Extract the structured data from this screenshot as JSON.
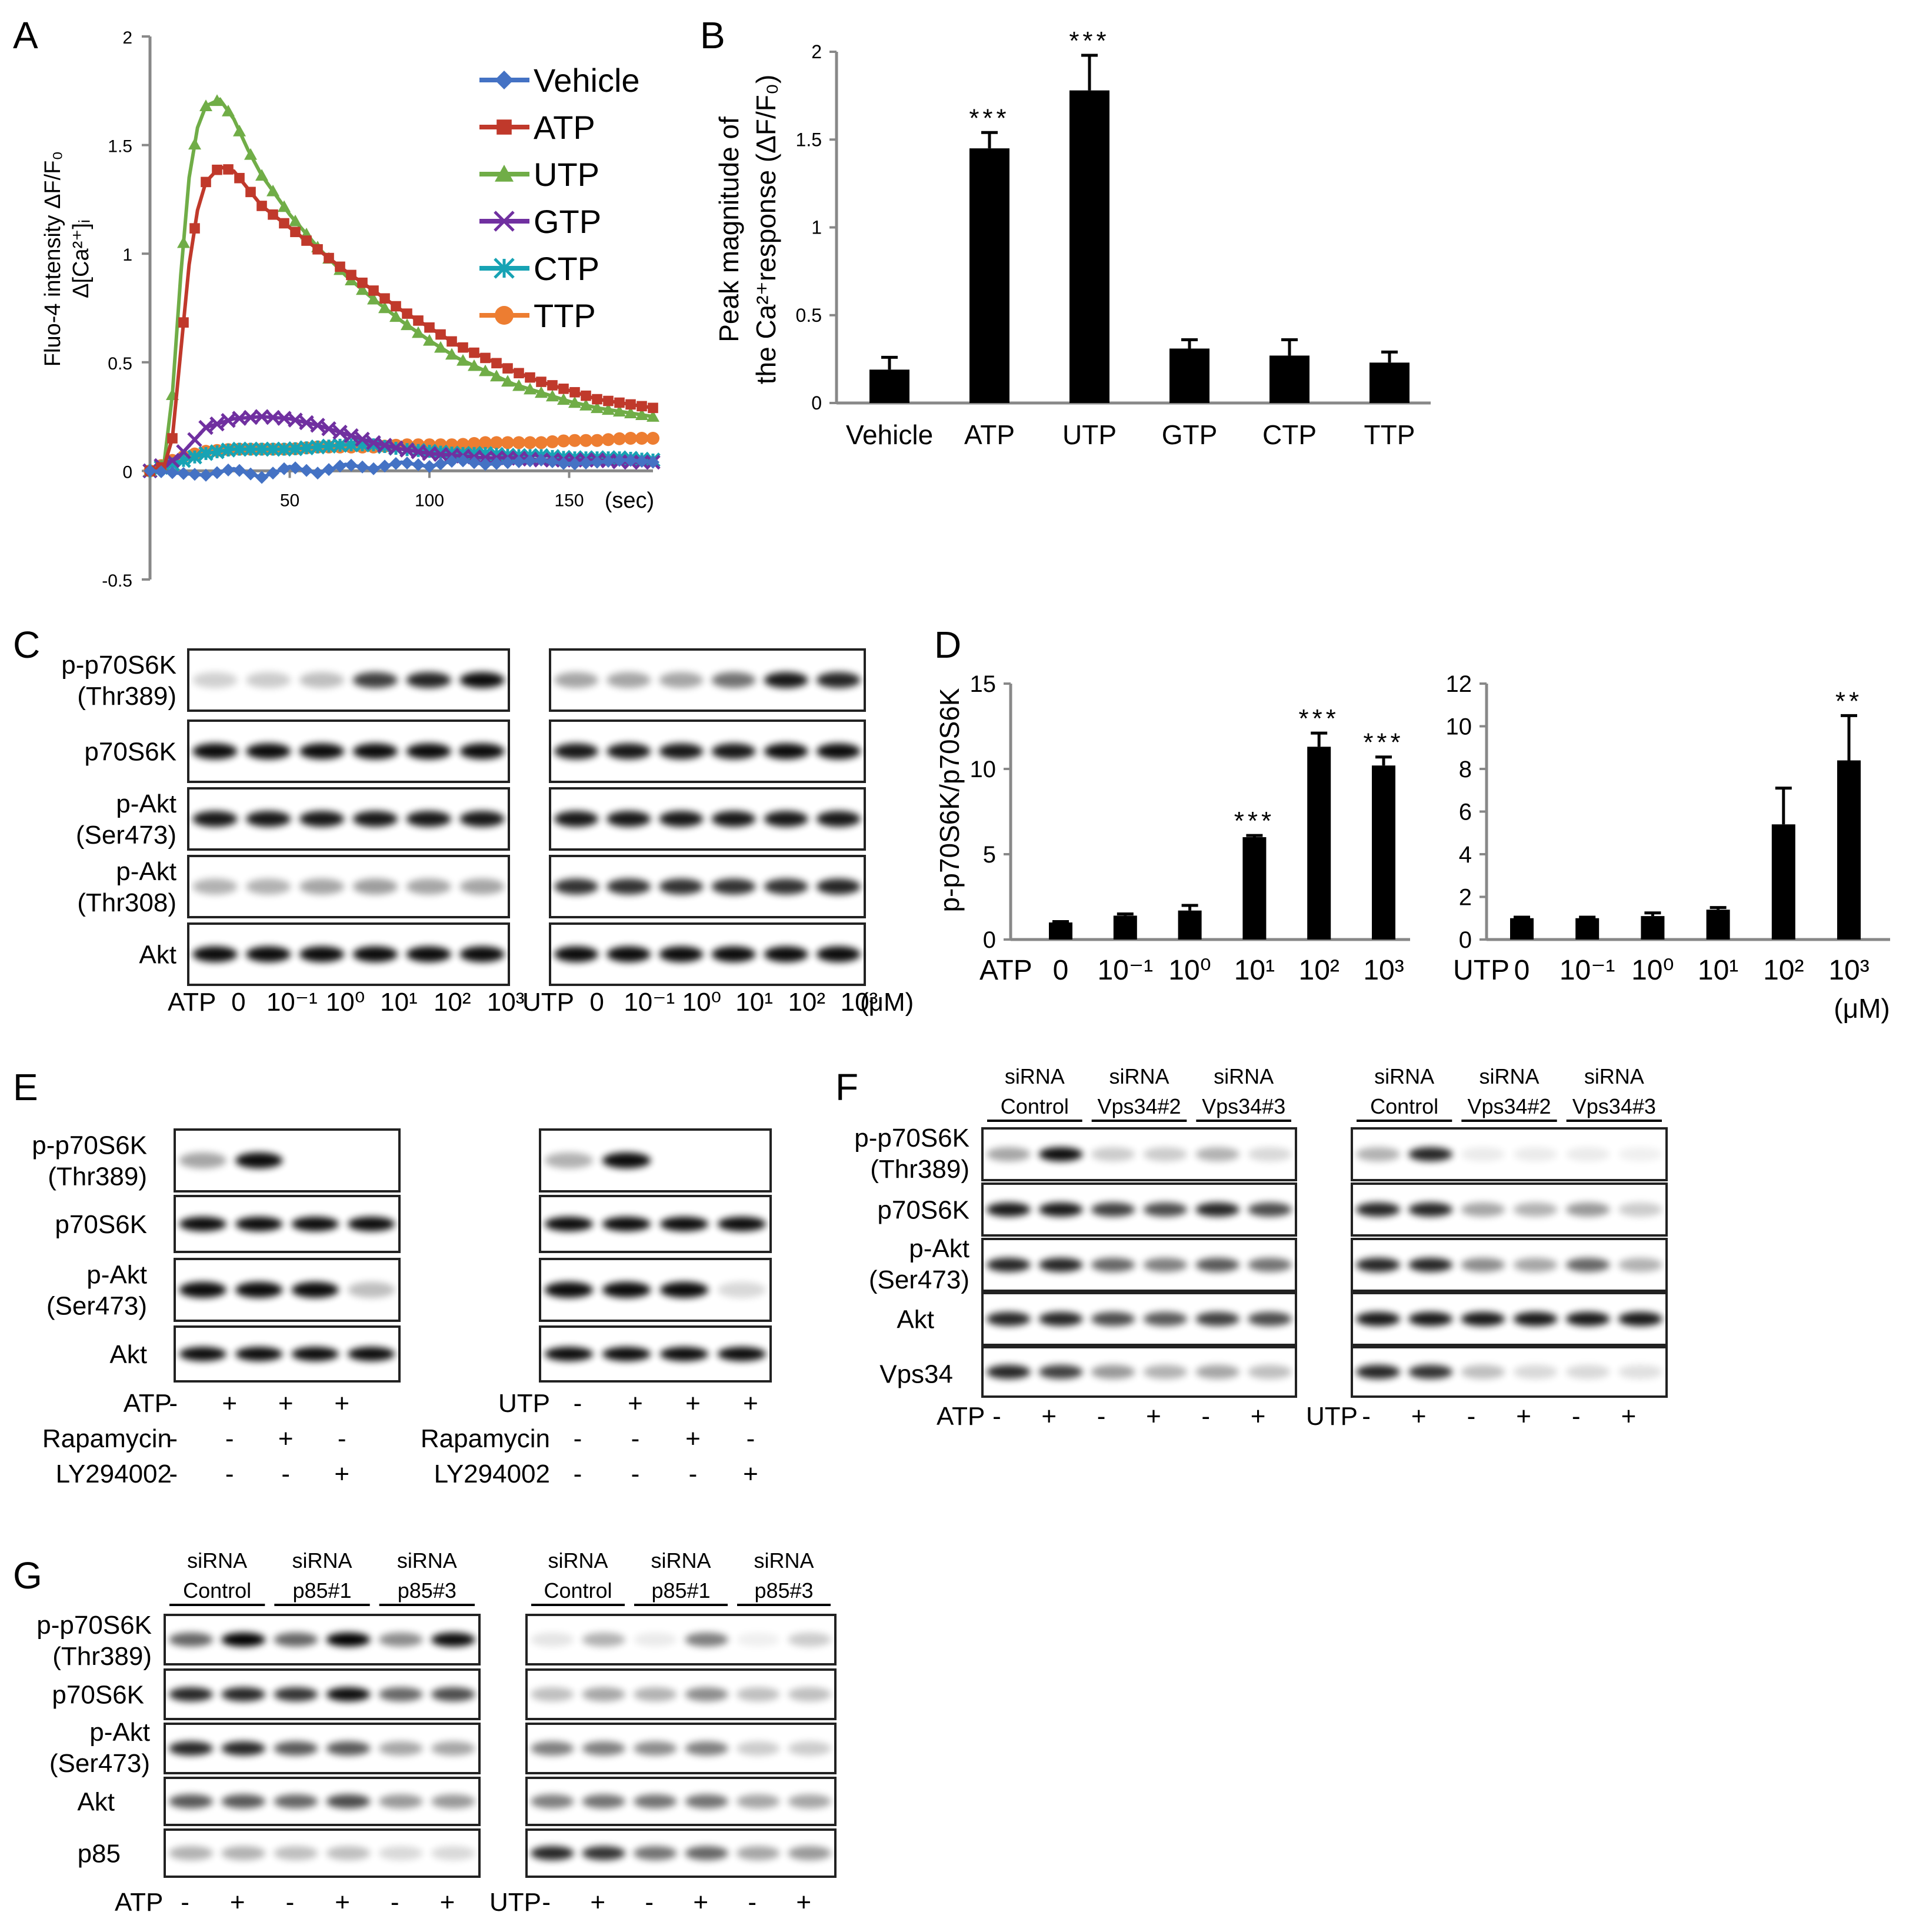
{
  "panels": {
    "A": {
      "letter": "A",
      "ylabel_line1": "Fluo-4 intensity ΔF/F₀",
      "ylabel_line2": "Δ[Ca²⁺]ᵢ",
      "xunit": "(sec)"
    },
    "B": {
      "letter": "B",
      "ylabel_line1": "Peak magnitude of",
      "ylabel_line2": "the Ca²⁺response (ΔF/F₀)"
    },
    "C": {
      "letter": "C",
      "rows": [
        "p-p70S6K (Thr389)",
        "p70S6K",
        "p-Akt (Ser473)",
        "p-Akt (Thr308)",
        "Akt"
      ],
      "row_lines": [
        [
          "p-p70S6K",
          "(Thr389)"
        ],
        [
          "p70S6K"
        ],
        [
          "p-Akt",
          "(Ser473)"
        ],
        [
          "p-Akt",
          "(Thr308)"
        ],
        [
          "Akt"
        ]
      ],
      "left_treat": "ATP",
      "right_treat": "UTP",
      "doses": [
        "0",
        "10⁻¹",
        "10⁰",
        "10¹",
        "10²",
        "10³"
      ],
      "unit": "(μM)"
    },
    "D": {
      "letter": "D",
      "ylabel": "p-p70S6K/p70S6K",
      "unit": "(μM)",
      "atp_label": "ATP",
      "utp_label": "UTP"
    },
    "E": {
      "letter": "E",
      "rows": [
        [
          "p-p70S6K",
          "(Thr389)"
        ],
        [
          "p70S6K"
        ],
        [
          "p-Akt",
          "(Ser473)"
        ],
        [
          "Akt"
        ]
      ],
      "left_treat": "ATP",
      "right_treat": "UTP",
      "atp_signs": [
        "-",
        "+",
        "+",
        "+"
      ],
      "rapamycin_label": "Rapamycin",
      "rapamycin_signs": [
        "-",
        "-",
        "+",
        "-"
      ],
      "ly_label": "LY294002",
      "ly_signs": [
        "-",
        "-",
        "-",
        "+"
      ]
    },
    "F": {
      "letter": "F",
      "groups": [
        [
          "siRNA",
          "Control"
        ],
        [
          "siRNA",
          "Vps34#2"
        ],
        [
          "siRNA",
          "Vps34#3"
        ]
      ],
      "rows": [
        [
          "p-p70S6K",
          "(Thr389)"
        ],
        [
          "p70S6K"
        ],
        [
          "p-Akt",
          "(Ser473)"
        ],
        [
          "Akt"
        ],
        [
          "Vps34"
        ]
      ],
      "left_treat": "ATP",
      "right_treat": "UTP",
      "signs": [
        "-",
        "+",
        "-",
        "+",
        "-",
        "+"
      ]
    },
    "G": {
      "letter": "G",
      "groups": [
        [
          "siRNA",
          "Control"
        ],
        [
          "siRNA",
          "p85#1"
        ],
        [
          "siRNA",
          "p85#3"
        ]
      ],
      "rows": [
        [
          "p-p70S6K",
          "(Thr389)"
        ],
        [
          "p70S6K"
        ],
        [
          "p-Akt",
          "(Ser473)"
        ],
        [
          "Akt"
        ],
        [
          "p85"
        ]
      ],
      "left_treat": "ATP",
      "right_treat": "UTP",
      "signs": [
        "-",
        "+",
        "-",
        "+",
        "-",
        "+"
      ]
    }
  },
  "chart_data": [
    {
      "panel": "A",
      "type": "line",
      "title": "",
      "xlabel": "(sec)",
      "ylabel": "Fluo-4 intensity ΔF/F₀ Δ[Ca²⁺]ᵢ",
      "xlim": [
        0,
        180
      ],
      "ylim": [
        -0.5,
        2
      ],
      "xticks": [
        50,
        100,
        150
      ],
      "yticks": [
        -0.5,
        0,
        0.5,
        1,
        1.5,
        2
      ],
      "series": [
        {
          "name": "Vehicle",
          "color": "#4472c4",
          "marker": "diamond",
          "x": [
            0,
            10,
            20,
            30,
            40,
            50,
            60,
            70,
            80,
            90,
            100,
            110,
            120,
            130,
            140,
            150,
            160,
            170,
            180
          ],
          "values": [
            0,
            -0.01,
            -0.02,
            0.01,
            -0.03,
            0.02,
            -0.01,
            0.03,
            0.01,
            0.04,
            0.02,
            0.05,
            0.03,
            0.04,
            0.05,
            0.03,
            0.04,
            0.05,
            0.04
          ]
        },
        {
          "name": "ATP",
          "color": "#c0392b",
          "marker": "square",
          "x": [
            0,
            5,
            8,
            11,
            14,
            17,
            20,
            25,
            30,
            35,
            40,
            50,
            60,
            70,
            80,
            90,
            100,
            110,
            120,
            130,
            140,
            150,
            160,
            170,
            180
          ],
          "values": [
            0,
            0.02,
            0.15,
            0.55,
            0.95,
            1.2,
            1.33,
            1.4,
            1.38,
            1.3,
            1.22,
            1.12,
            1.02,
            0.92,
            0.83,
            0.74,
            0.66,
            0.58,
            0.52,
            0.46,
            0.41,
            0.37,
            0.33,
            0.31,
            0.29
          ]
        },
        {
          "name": "UTP",
          "color": "#70ad47",
          "marker": "triangle",
          "x": [
            0,
            5,
            8,
            11,
            14,
            17,
            20,
            25,
            30,
            35,
            40,
            50,
            60,
            70,
            80,
            90,
            100,
            110,
            120,
            130,
            140,
            150,
            160,
            170,
            180
          ],
          "values": [
            0,
            0.03,
            0.35,
            0.9,
            1.35,
            1.58,
            1.68,
            1.71,
            1.62,
            1.48,
            1.36,
            1.18,
            1.03,
            0.9,
            0.79,
            0.69,
            0.6,
            0.52,
            0.46,
            0.4,
            0.36,
            0.32,
            0.29,
            0.27,
            0.25
          ]
        },
        {
          "name": "GTP",
          "color": "#7030a0",
          "marker": "x",
          "x": [
            0,
            10,
            20,
            30,
            40,
            50,
            60,
            70,
            80,
            90,
            100,
            110,
            120,
            130,
            140,
            150,
            160,
            170,
            180
          ],
          "values": [
            0,
            0.06,
            0.2,
            0.24,
            0.25,
            0.24,
            0.21,
            0.17,
            0.13,
            0.1,
            0.08,
            0.07,
            0.06,
            0.06,
            0.05,
            0.05,
            0.05,
            0.04,
            0.04
          ]
        },
        {
          "name": "CTP",
          "color": "#17a3b4",
          "marker": "asterisk",
          "x": [
            0,
            10,
            20,
            30,
            40,
            50,
            60,
            70,
            80,
            90,
            100,
            110,
            120,
            130,
            140,
            150,
            160,
            170,
            180
          ],
          "values": [
            0,
            0.04,
            0.08,
            0.1,
            0.1,
            0.1,
            0.11,
            0.12,
            0.12,
            0.1,
            0.09,
            0.08,
            0.08,
            0.07,
            0.07,
            0.06,
            0.06,
            0.06,
            0.05
          ]
        },
        {
          "name": "TTP",
          "color": "#ed7d31",
          "marker": "circle",
          "x": [
            0,
            10,
            20,
            30,
            40,
            50,
            60,
            70,
            80,
            90,
            100,
            110,
            120,
            130,
            140,
            150,
            160,
            170,
            180
          ],
          "values": [
            0,
            0.06,
            0.09,
            0.1,
            0.1,
            0.1,
            0.11,
            0.11,
            0.11,
            0.12,
            0.12,
            0.12,
            0.13,
            0.13,
            0.13,
            0.14,
            0.14,
            0.15,
            0.15
          ]
        }
      ]
    },
    {
      "panel": "B",
      "type": "bar",
      "title": "",
      "xlabel": "",
      "ylabel": "Peak magnitude of the Ca²⁺response (ΔF/F₀)",
      "categories": [
        "Vehicle",
        "ATP",
        "UTP",
        "GTP",
        "CTP",
        "TTP"
      ],
      "values": [
        0.19,
        1.45,
        1.78,
        0.31,
        0.27,
        0.23
      ],
      "errors": [
        0.07,
        0.09,
        0.2,
        0.05,
        0.09,
        0.06
      ],
      "significance": [
        "",
        "***",
        "***",
        "",
        "",
        ""
      ],
      "ylim": [
        0,
        2
      ],
      "yticks": [
        0,
        0.5,
        1,
        1.5,
        2
      ]
    },
    {
      "panel": "D-ATP",
      "type": "bar",
      "title": "",
      "xlabel": "ATP",
      "ylabel": "p-p70S6K/p70S6K",
      "categories": [
        "0",
        "10⁻¹",
        "10⁰",
        "10¹",
        "10²",
        "10³"
      ],
      "values": [
        1.0,
        1.4,
        1.7,
        6.0,
        11.3,
        10.2
      ],
      "errors": [
        0.05,
        0.1,
        0.3,
        0.1,
        0.8,
        0.5
      ],
      "significance": [
        "",
        "",
        "",
        "***",
        "***",
        "***"
      ],
      "ylim": [
        0,
        15
      ],
      "yticks": [
        0,
        5,
        10,
        15
      ]
    },
    {
      "panel": "D-UTP",
      "type": "bar",
      "title": "",
      "xlabel": "UTP",
      "ylabel": "",
      "categories": [
        "0",
        "10⁻¹",
        "10⁰",
        "10¹",
        "10²",
        "10³"
      ],
      "values": [
        1.0,
        1.0,
        1.1,
        1.4,
        5.4,
        8.4
      ],
      "errors": [
        0.05,
        0.05,
        0.15,
        0.1,
        1.7,
        2.1
      ],
      "significance": [
        "",
        "",
        "",
        "",
        "",
        "**"
      ],
      "ylim": [
        0,
        12
      ],
      "yticks": [
        0,
        2,
        4,
        6,
        8,
        10,
        12
      ]
    }
  ]
}
